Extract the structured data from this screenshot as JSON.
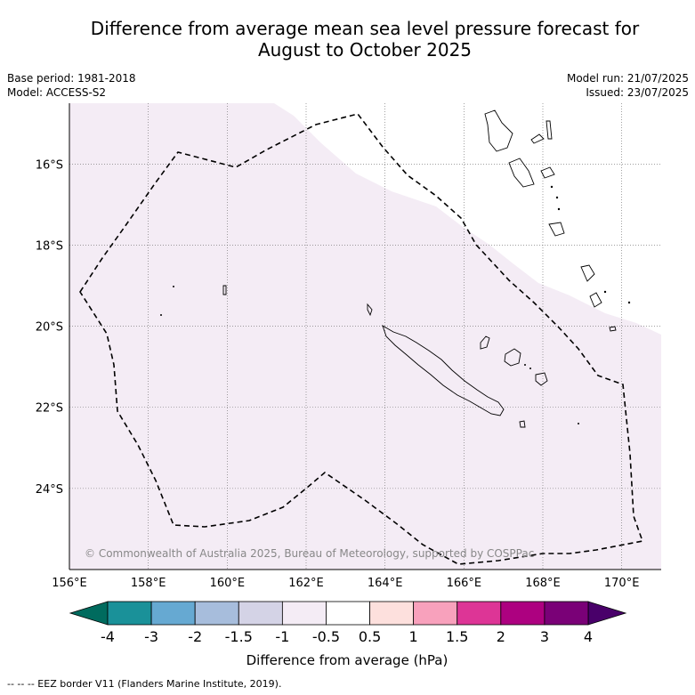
{
  "title": {
    "line1": "Difference from average mean sea level pressure forecast for",
    "line2": "August to October 2025"
  },
  "meta_left": {
    "base_period": "Base period: 1981-2018",
    "model": "Model: ACCESS-S2"
  },
  "meta_right": {
    "model_run": "Model run: 21/07/2025",
    "issued": "Issued: 23/07/2025"
  },
  "map": {
    "lon_range": [
      156,
      171
    ],
    "lat_range": [
      -26.0,
      -14.5
    ],
    "lon_ticks": [
      "156°E",
      "158°E",
      "160°E",
      "162°E",
      "164°E",
      "166°E",
      "168°E",
      "170°E"
    ],
    "lat_ticks": [
      "16°S",
      "18°S",
      "20°S",
      "22°S",
      "24°S"
    ],
    "fill_color": "#f4ecf5",
    "copyright": "© Commonwealth of Australia 2025, Bureau of Meteorology, supported by COSPPac"
  },
  "colorbar": {
    "tick_labels": [
      "-4",
      "-3",
      "-2",
      "-1.5",
      "-1",
      "-0.5",
      "0.5",
      "1",
      "1.5",
      "2",
      "3",
      "4"
    ],
    "colors": [
      "#1a9199",
      "#66a9d2",
      "#a7bddc",
      "#d4d3e6",
      "#f4ecf5",
      "#ffffff",
      "#fde0dd",
      "#f8a1bc",
      "#dd3596",
      "#ad0180",
      "#7a0177"
    ],
    "under_color": "#006b5e",
    "over_color": "#49006a",
    "label": "Difference from average (hPa)"
  },
  "footer": {
    "legend_text": "--  --  -- EEZ border V11 (Flanders Marine Institute, 2019)."
  }
}
